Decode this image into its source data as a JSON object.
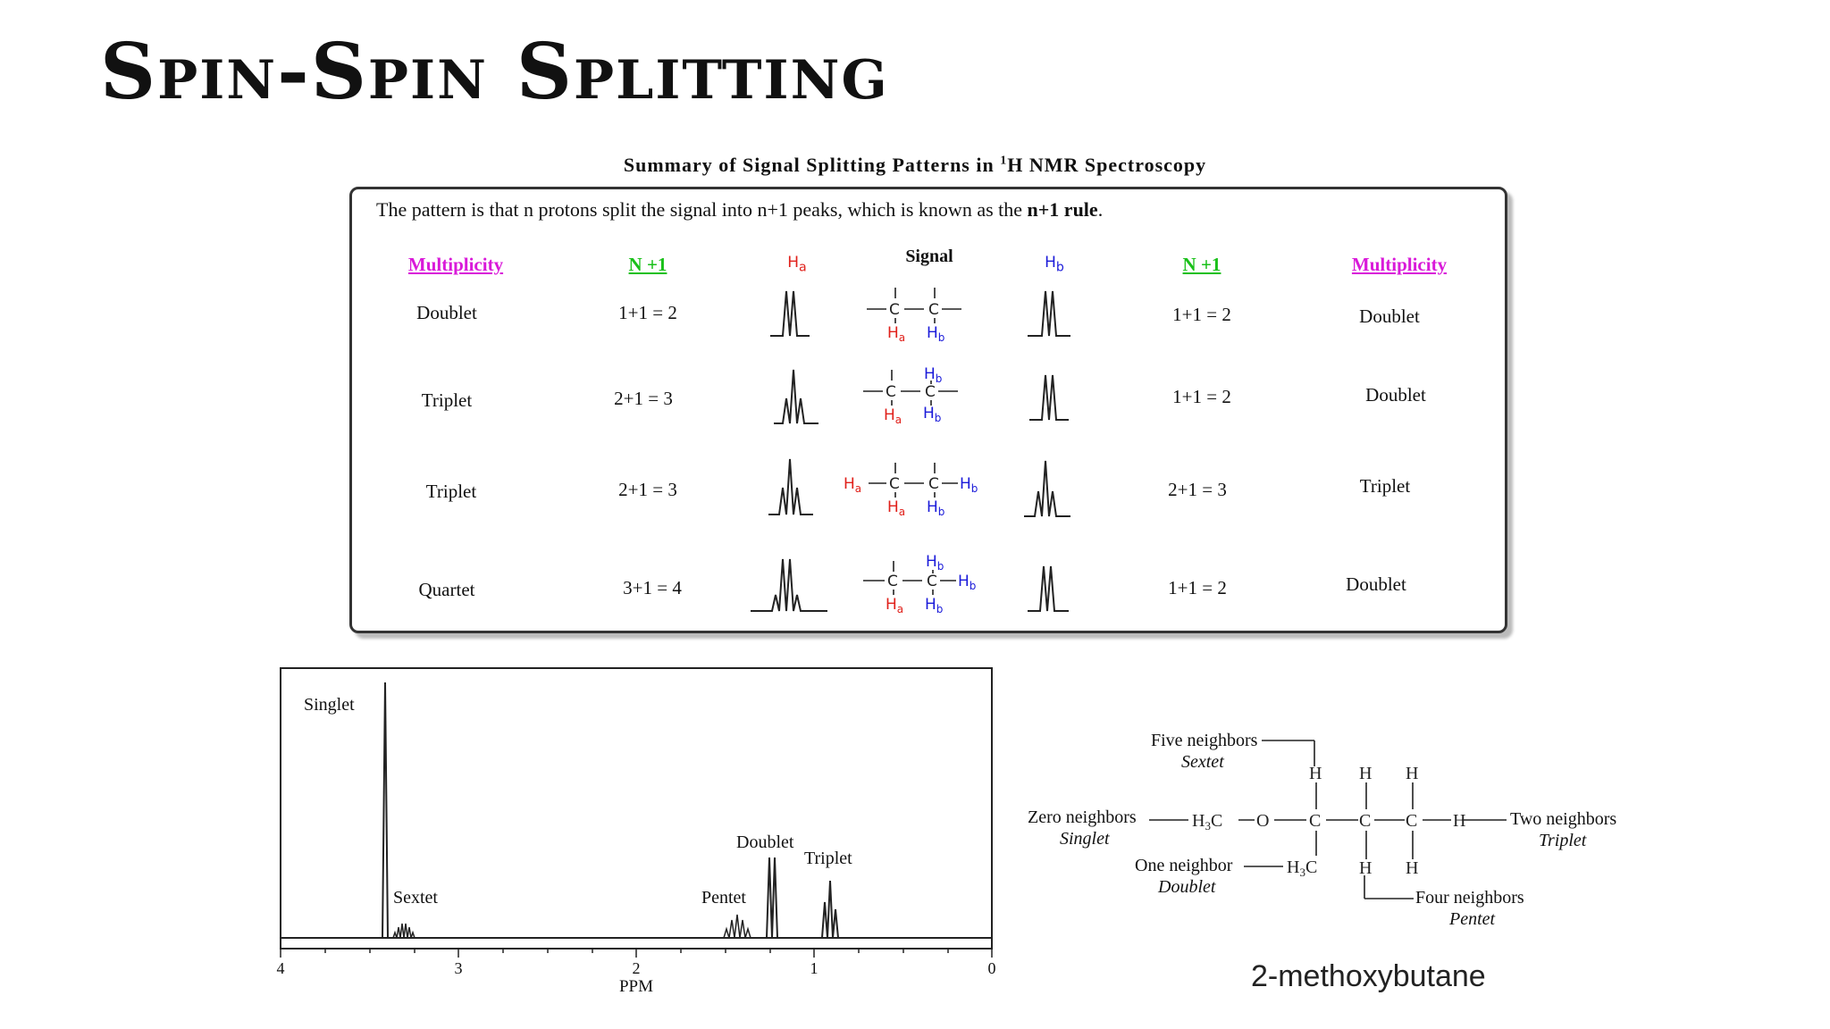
{
  "slide": {
    "title": "Spin-Spin Splitting"
  },
  "summary": {
    "caption_main": "Summary of Signal Splitting Patterns in ",
    "caption_sup": "1",
    "caption_tail": "H NMR Spectroscopy",
    "intro_text": "The pattern is that n protons split the signal into n+1 peaks, which is known as the ",
    "intro_rule": "n+1 rule",
    "intro_period": ".",
    "headers": {
      "multiplicity_left": "Multiplicity",
      "n_plus_one_left": "N +1",
      "ha": "Ha",
      "signal": "Signal",
      "hb": "Hb",
      "n_plus_one_right": "N +1",
      "multiplicity_right": "Multiplicity"
    },
    "rows": [
      {
        "mult_a": "Doublet",
        "calc_a": "1+1 = 2",
        "calc_b": "1+1 = 2",
        "mult_b": "Doublet"
      },
      {
        "mult_a": "Triplet",
        "calc_a": "2+1 = 3",
        "calc_b": "1+1 = 2",
        "mult_b": "Doublet"
      },
      {
        "mult_a": "Triplet",
        "calc_a": "2+1 = 3",
        "calc_b": "2+1 = 3",
        "mult_b": "Triplet"
      },
      {
        "mult_a": "Quartet",
        "calc_a": "3+1 = 4",
        "calc_b": "1+1 = 2",
        "mult_b": "Doublet"
      }
    ],
    "colors": {
      "multiplicity": "#d91ad9",
      "n_plus_one": "#19c019",
      "ha": "#e0201a",
      "hb": "#1a1ad9"
    }
  },
  "spectrum": {
    "xlabel": "PPM",
    "ticks": [
      "4",
      "3",
      "2",
      "1",
      "0"
    ],
    "peak_labels": [
      "Singlet",
      "Sextet",
      "Pentet",
      "Doublet",
      "Triplet"
    ]
  },
  "molecule": {
    "name": "2-methoxybutane",
    "five_neighbors": "Five neighbors",
    "sextet": "Sextet",
    "zero_neighbors": "Zero neighbors",
    "singlet": "Singlet",
    "one_neighbor": "One neighbor",
    "doublet": "Doublet",
    "two_neighbors": "Two neighbors",
    "triplet": "Triplet",
    "four_neighbors": "Four neighbors",
    "pentet": "Pentet"
  }
}
